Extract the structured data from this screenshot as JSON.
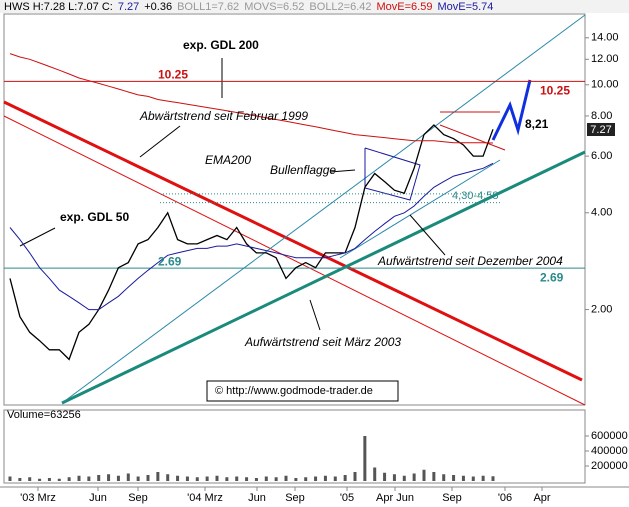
{
  "header": [
    "HWS H:7.28 L:7.07 C:",
    "7.27",
    "+0.36",
    "BOLL1=7.62",
    "MOVS=6.52",
    "BOLL2=6.42",
    "MovE=6.59",
    "MovE=5.74"
  ],
  "chart_data": [
    {
      "type": "line",
      "log_scale": true,
      "ylim": [
        1.01,
        16.6
      ],
      "yticks": [
        {
          "value": 2,
          "label": "2.00"
        },
        {
          "value": 4,
          "label": "4.00"
        },
        {
          "value": 6,
          "label": "6.00"
        },
        {
          "value": 8,
          "label": "8.00"
        },
        {
          "value": 10,
          "label": "10.00"
        },
        {
          "value": 12,
          "label": "12.00"
        },
        {
          "value": 14,
          "label": "14.00"
        }
      ],
      "x_labels": [
        "'03 Mrz",
        "Jun",
        "Sep",
        "'04 Mrz",
        "Jun",
        "Sep",
        "'05",
        "Apr Jun",
        "Sep",
        "'06",
        "Apr"
      ],
      "series": [
        {
          "color": "#000000",
          "values": [
            2.5,
            1.9,
            1.7,
            1.6,
            1.5,
            1.5,
            1.4,
            1.7,
            1.8,
            2.0,
            2.3,
            2.7,
            2.8,
            3.2,
            3.3,
            3.6,
            4.0,
            3.3,
            3.2,
            3.2,
            3.3,
            3.4,
            3.3,
            3.6,
            3.2,
            3.0,
            3.0,
            2.9,
            2.5,
            2.7,
            2.8,
            2.7,
            3.0,
            3.0,
            3.0,
            3.6,
            4.8,
            5.3,
            5.0,
            4.7,
            4.6,
            5.5,
            7.0,
            7.5,
            7.0,
            6.8,
            6.5,
            6.0,
            6.0,
            7.27
          ]
        },
        {
          "color": "#1a1aa0",
          "values": [
            3.6,
            3.3,
            3.0,
            2.7,
            2.5,
            2.3,
            2.2,
            2.1,
            2.0,
            2.0,
            2.1,
            2.2,
            2.35,
            2.5,
            2.65,
            2.8,
            2.95,
            3.0,
            3.05,
            3.1,
            3.1,
            3.15,
            3.15,
            3.2,
            3.15,
            3.1,
            3.05,
            3.0,
            2.95,
            2.9,
            2.9,
            2.9,
            2.9,
            2.95,
            3.0,
            3.1,
            3.3,
            3.5,
            3.7,
            3.9,
            4.0,
            4.2,
            4.5,
            4.8,
            5.0,
            5.2,
            5.3,
            5.4,
            5.5,
            5.7
          ]
        },
        {
          "color": "#cc1010",
          "values": [
            12.5,
            12.2,
            12.0,
            11.7,
            11.4,
            11.1,
            10.8,
            10.5,
            10.3,
            10.1,
            9.9,
            9.7,
            9.5,
            9.3,
            9.2,
            9.0,
            8.9,
            8.8,
            8.7,
            8.6,
            8.5,
            8.4,
            8.3,
            8.2,
            8.1,
            8.0,
            7.9,
            7.8,
            7.7,
            7.6,
            7.5,
            7.4,
            7.3,
            7.2,
            7.1,
            7.0,
            6.95,
            6.9,
            6.85,
            6.8,
            6.75,
            6.7,
            6.7,
            6.7,
            6.65,
            6.6,
            6.6,
            6.6,
            6.6,
            6.59
          ]
        }
      ],
      "levels": [
        {
          "value": 10.25,
          "color": "#cc1010"
        },
        {
          "value": 2.69,
          "color": "#2a8a8a"
        }
      ],
      "zone": {
        "label": "4,30-4,58",
        "values": [
          4.3,
          4.58
        ],
        "color": "#2a8a8a"
      },
      "annotations": {
        "gdl200": "exp. GDL 200",
        "downtrend": "Abwärtstrend seit Februar 1999",
        "ema": "EMA200",
        "flag": "Bullenflagge",
        "gdl50": "exp. GDL 50",
        "uptrend2004": "Aufwärtstrend seit Dezember 2004",
        "uptrend2003": "Aufwärtstrend seit März 2003",
        "copyright": "© http://www.godmode-trader.de",
        "target": "8,21"
      }
    },
    {
      "type": "bar",
      "title": "Volume=63256",
      "color": "#555555",
      "ylim": [
        0,
        800000
      ],
      "yticks": [
        200000,
        400000,
        600000
      ],
      "values": [
        60000,
        40000,
        50000,
        30000,
        40000,
        30000,
        50000,
        70000,
        60000,
        80000,
        90000,
        70000,
        100000,
        60000,
        80000,
        120000,
        90000,
        70000,
        60000,
        50000,
        60000,
        70000,
        50000,
        60000,
        50000,
        40000,
        60000,
        50000,
        70000,
        40000,
        50000,
        60000,
        70000,
        60000,
        80000,
        120000,
        600000,
        180000,
        110000,
        90000,
        70000,
        100000,
        150000,
        120000,
        90000,
        80000,
        70000,
        60000,
        70000,
        63256
      ]
    }
  ]
}
